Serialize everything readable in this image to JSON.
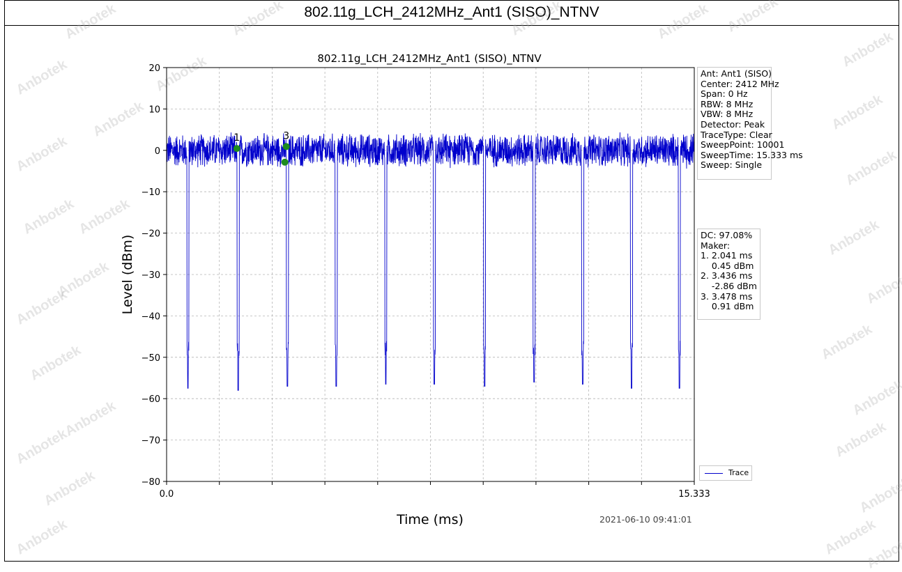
{
  "page": {
    "header_title": "802.11g_LCH_2412MHz_Ant1 (SISO)_NTNV",
    "watermark_text": "Anbotek",
    "timestamp": "2021-06-10 09:41:01"
  },
  "settings_box": [
    "Ant: Ant1 (SISO)",
    "Center: 2412 MHz",
    "Span: 0 Hz",
    "RBW: 8 MHz",
    "VBW: 8 MHz",
    "Detector: Peak",
    "TraceType: Clear",
    "SweepPoint: 10001",
    "SweepTime: 15.333 ms",
    "Sweep: Single"
  ],
  "marker_box": [
    "DC: 97.08%",
    "Maker:",
    "1. 2.041 ms",
    "    0.45 dBm",
    "2. 3.436 ms",
    "    -2.86 dBm",
    "3. 3.478 ms",
    "    0.91 dBm"
  ],
  "chart_data": {
    "type": "line",
    "title": "802.11g_LCH_2412MHz_Ant1 (SISO)_NTNV",
    "xlabel": "Time (ms)",
    "ylabel": "Level (dBm)",
    "xlim": [
      0.0,
      15.333
    ],
    "ylim": [
      -80,
      20
    ],
    "x_tick_labels": [
      "0.0",
      "15.333"
    ],
    "x_minor_ticks": [
      1.5333,
      3.0666,
      4.5999,
      6.1332,
      7.6665,
      9.1998,
      10.7331,
      12.2664,
      13.7997
    ],
    "y_ticks": [
      20,
      10,
      0,
      -10,
      -20,
      -30,
      -40,
      -50,
      -60,
      -70,
      -80
    ],
    "grid": true,
    "legend": "bottom-right",
    "series": [
      {
        "name": "Trace",
        "color": "#0000cc",
        "noise_floor_dbm": 0,
        "noise_amplitude_dbm": [
          -4.5,
          4.5
        ],
        "gap_times_ms": [
          0.62,
          2.08,
          3.51,
          4.93,
          6.37,
          7.78,
          9.24,
          10.68,
          12.09,
          13.51,
          14.9
        ],
        "gap_min_dbm": [
          -57.5,
          -58,
          -57,
          -57,
          -56.5,
          -56.5,
          -57,
          -56,
          -56.5,
          -57.5,
          -57.5
        ]
      }
    ],
    "markers": [
      {
        "label": "1",
        "x": 2.041,
        "y": 0.45
      },
      {
        "label": "2",
        "x": 3.436,
        "y": -2.86
      },
      {
        "label": "3",
        "x": 3.478,
        "y": 0.91
      }
    ],
    "marker_color": "#1e8c1e"
  }
}
